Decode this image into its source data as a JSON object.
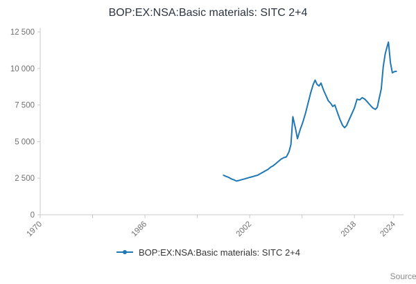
{
  "title": "BOP:EX:NSA:Basic materials: SITC 2+4",
  "legend": {
    "label": "BOP:EX:NSA:Basic materials: SITC 2+4"
  },
  "source_label": "Source:",
  "colors": {
    "line": "#1f77b4",
    "axis": "#c9c9c9",
    "tick_text": "#707070",
    "title_text": "#2b3440"
  },
  "chart_data": {
    "type": "line",
    "title": "BOP:EX:NSA:Basic materials: SITC 2+4",
    "xlabel": "",
    "ylabel": "",
    "x_range": [
      1970,
      2025.5
    ],
    "y_range": [
      0,
      12500
    ],
    "y_ticks": [
      0,
      2500,
      5000,
      7500,
      10000,
      12500
    ],
    "y_tick_labels": [
      "0",
      "2 500",
      "5 000",
      "7 500",
      "10 000",
      "12 500"
    ],
    "x_ticks": [
      1970,
      1978,
      1986,
      1994,
      2002,
      2010,
      2018,
      2024
    ],
    "x_tick_labels": [
      "1970",
      "",
      "1986",
      "",
      "2002",
      "",
      "2018",
      "2024"
    ],
    "grid": false,
    "legend_position": "bottom",
    "series": [
      {
        "name": "BOP:EX:NSA:Basic materials: SITC 2+4",
        "points": [
          [
            1998,
            2700
          ],
          [
            1998.4,
            2620
          ],
          [
            1998.8,
            2550
          ],
          [
            1999.2,
            2450
          ],
          [
            1999.6,
            2380
          ],
          [
            2000,
            2300
          ],
          [
            2000.4,
            2350
          ],
          [
            2000.8,
            2400
          ],
          [
            2001.2,
            2450
          ],
          [
            2001.6,
            2500
          ],
          [
            2002,
            2550
          ],
          [
            2002.4,
            2600
          ],
          [
            2002.8,
            2650
          ],
          [
            2003.2,
            2700
          ],
          [
            2003.6,
            2800
          ],
          [
            2004,
            2900
          ],
          [
            2004.4,
            3000
          ],
          [
            2004.8,
            3100
          ],
          [
            2005.2,
            3250
          ],
          [
            2005.6,
            3350
          ],
          [
            2006,
            3500
          ],
          [
            2006.4,
            3650
          ],
          [
            2006.8,
            3800
          ],
          [
            2007.2,
            3900
          ],
          [
            2007.6,
            3950
          ],
          [
            2008,
            4300
          ],
          [
            2008.3,
            4800
          ],
          [
            2008.6,
            6700
          ],
          [
            2009,
            5900
          ],
          [
            2009.3,
            5200
          ],
          [
            2009.7,
            5800
          ],
          [
            2010.1,
            6300
          ],
          [
            2010.5,
            6900
          ],
          [
            2010.9,
            7600
          ],
          [
            2011.3,
            8300
          ],
          [
            2011.7,
            8900
          ],
          [
            2012,
            9200
          ],
          [
            2012.3,
            8900
          ],
          [
            2012.6,
            8800
          ],
          [
            2012.9,
            9000
          ],
          [
            2013.3,
            8500
          ],
          [
            2013.7,
            8100
          ],
          [
            2014,
            7800
          ],
          [
            2014.4,
            7600
          ],
          [
            2014.7,
            7400
          ],
          [
            2015,
            7500
          ],
          [
            2015.4,
            7000
          ],
          [
            2015.8,
            6500
          ],
          [
            2016.2,
            6100
          ],
          [
            2016.5,
            5950
          ],
          [
            2016.8,
            6100
          ],
          [
            2017.2,
            6500
          ],
          [
            2017.6,
            6900
          ],
          [
            2018,
            7300
          ],
          [
            2018.4,
            7900
          ],
          [
            2018.8,
            7850
          ],
          [
            2019.2,
            8000
          ],
          [
            2019.6,
            7900
          ],
          [
            2020,
            7700
          ],
          [
            2020.4,
            7500
          ],
          [
            2020.8,
            7300
          ],
          [
            2021.2,
            7200
          ],
          [
            2021.5,
            7350
          ],
          [
            2021.8,
            8000
          ],
          [
            2022.1,
            8600
          ],
          [
            2022.4,
            10100
          ],
          [
            2022.7,
            11000
          ],
          [
            2023,
            11500
          ],
          [
            2023.2,
            11800
          ],
          [
            2023.5,
            10400
          ],
          [
            2023.8,
            9700
          ],
          [
            2024.1,
            9780
          ],
          [
            2024.4,
            9800
          ]
        ]
      }
    ]
  }
}
